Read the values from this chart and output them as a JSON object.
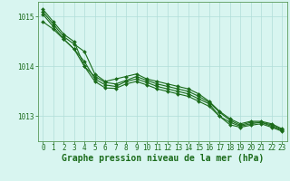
{
  "x": [
    0,
    1,
    2,
    3,
    4,
    5,
    6,
    7,
    8,
    9,
    10,
    11,
    12,
    13,
    14,
    15,
    16,
    17,
    18,
    19,
    20,
    21,
    22,
    23
  ],
  "series": [
    [
      1015.1,
      1014.85,
      1014.6,
      1014.45,
      1014.3,
      1013.85,
      1013.7,
      1013.75,
      1013.8,
      1013.85,
      1013.75,
      1013.7,
      1013.65,
      1013.6,
      1013.55,
      1013.45,
      1013.3,
      1013.1,
      1012.95,
      1012.85,
      1012.9,
      1012.9,
      1012.85,
      1012.75
    ],
    [
      1015.05,
      1014.8,
      1014.55,
      1014.35,
      1014.1,
      1013.75,
      1013.63,
      1013.6,
      1013.7,
      1013.75,
      1013.68,
      1013.6,
      1013.55,
      1013.5,
      1013.45,
      1013.35,
      1013.25,
      1013.0,
      1012.88,
      1012.8,
      1012.85,
      1012.88,
      1012.8,
      1012.72
    ],
    [
      1015.15,
      1014.9,
      1014.65,
      1014.5,
      1014.0,
      1013.8,
      1013.68,
      1013.65,
      1013.72,
      1013.8,
      1013.72,
      1013.65,
      1013.6,
      1013.55,
      1013.5,
      1013.4,
      1013.28,
      1013.08,
      1012.92,
      1012.82,
      1012.88,
      1012.88,
      1012.83,
      1012.73
    ],
    [
      1014.9,
      1014.75,
      1014.55,
      1014.35,
      1014.0,
      1013.7,
      1013.57,
      1013.56,
      1013.65,
      1013.7,
      1013.63,
      1013.55,
      1013.5,
      1013.45,
      1013.4,
      1013.3,
      1013.2,
      1013.0,
      1012.83,
      1012.78,
      1012.82,
      1012.85,
      1012.78,
      1012.7
    ]
  ],
  "line_color": "#1a6b1a",
  "marker": "D",
  "markersize": 2.0,
  "linewidth": 0.8,
  "ylim": [
    1012.5,
    1015.3
  ],
  "yticks": [
    1013,
    1014,
    1015
  ],
  "xlim": [
    -0.5,
    23.5
  ],
  "xticks": [
    0,
    1,
    2,
    3,
    4,
    5,
    6,
    7,
    8,
    9,
    10,
    11,
    12,
    13,
    14,
    15,
    16,
    17,
    18,
    19,
    20,
    21,
    22,
    23
  ],
  "xlabel": "Graphe pression niveau de la mer (hPa)",
  "bg_color": "#d8f5f0",
  "grid_color": "#b0ddd8",
  "text_color": "#1a6b1a",
  "tick_color": "#1a6b1a",
  "axis_color": "#5a9a5a",
  "xlabel_fontsize": 7,
  "tick_fontsize": 5.5
}
